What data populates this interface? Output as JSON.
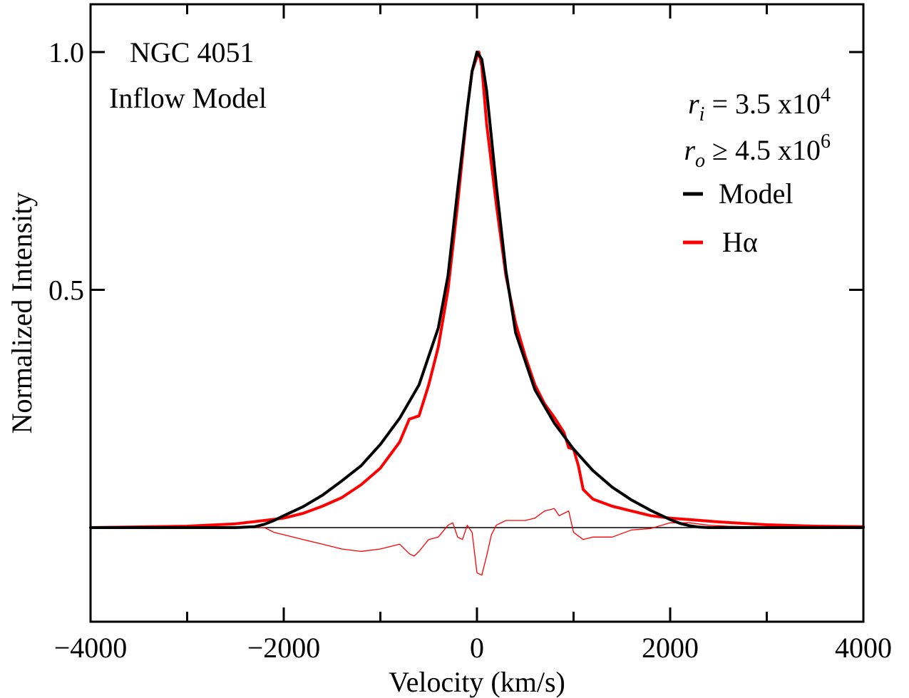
{
  "chart_data": {
    "type": "line",
    "xlabel": "Velocity (km/s)",
    "ylabel": "Normalized Intensity",
    "xlim": [
      -4000,
      4000
    ],
    "ylim": [
      -0.2,
      1.1
    ],
    "x_ticks": [
      -4000,
      -2000,
      0,
      2000,
      4000
    ],
    "x_tick_labels": [
      "−4000",
      "−2000",
      "0",
      "2000",
      "4000"
    ],
    "y_ticks": [
      0.5,
      1.0
    ],
    "y_tick_labels": [
      "0.5",
      "1.0"
    ],
    "annotations": {
      "object": "NGC 4051",
      "model_name": "Inflow Model",
      "ri": {
        "sym": "r",
        "sub": "i",
        "rel": " = 3.5 x10",
        "exp": "4"
      },
      "ro": {
        "sym": "r",
        "sub": "o",
        "rel": " ≥ 4.5 x10",
        "exp": "6"
      }
    },
    "legend_position": "top-right",
    "colors": {
      "model": "#000000",
      "halpha": "#ff0000",
      "residual": "#ff0000",
      "zero_line": "#000000"
    },
    "series": [
      {
        "name": "Model",
        "style": "thick",
        "x": [
          -4000,
          -3000,
          -2500,
          -2300,
          -2200,
          -2100,
          -2000,
          -1800,
          -1600,
          -1400,
          -1200,
          -1000,
          -800,
          -600,
          -400,
          -300,
          -200,
          -100,
          -50,
          0,
          50,
          100,
          200,
          300,
          400,
          600,
          800,
          1000,
          1200,
          1400,
          1600,
          1800,
          2000,
          2100,
          2200,
          2300,
          2400,
          2600,
          3000,
          4000
        ],
        "y": [
          0.0,
          0.0,
          0.0,
          0.002,
          0.007,
          0.015,
          0.025,
          0.044,
          0.068,
          0.098,
          0.13,
          0.175,
          0.23,
          0.3,
          0.42,
          0.53,
          0.71,
          0.88,
          0.96,
          1.0,
          0.985,
          0.92,
          0.72,
          0.54,
          0.41,
          0.29,
          0.22,
          0.165,
          0.12,
          0.085,
          0.058,
          0.036,
          0.017,
          0.009,
          0.004,
          0.001,
          0.0,
          0.0,
          0.0,
          0.0
        ]
      },
      {
        "name": "Hα",
        "style": "thick",
        "x": [
          -4000,
          -3000,
          -2500,
          -2200,
          -2000,
          -1800,
          -1600,
          -1400,
          -1200,
          -1000,
          -800,
          -700,
          -600,
          -500,
          -400,
          -300,
          -200,
          -100,
          -50,
          0,
          20,
          50,
          100,
          200,
          300,
          400,
          500,
          600,
          700,
          800,
          900,
          950,
          1000,
          1050,
          1100,
          1200,
          1400,
          1600,
          1800,
          2000,
          2200,
          2500,
          3000,
          3500,
          4000
        ],
        "y": [
          0.0,
          0.003,
          0.008,
          0.015,
          0.02,
          0.03,
          0.045,
          0.063,
          0.09,
          0.125,
          0.18,
          0.228,
          0.235,
          0.3,
          0.38,
          0.5,
          0.68,
          0.88,
          0.96,
          0.99,
          1.0,
          0.97,
          0.85,
          0.68,
          0.53,
          0.43,
          0.36,
          0.3,
          0.26,
          0.232,
          0.2,
          0.168,
          0.165,
          0.13,
          0.08,
          0.06,
          0.045,
          0.035,
          0.025,
          0.02,
          0.017,
          0.012,
          0.006,
          0.003,
          0.002
        ]
      },
      {
        "name": "",
        "style": "thin",
        "x": [
          -4000,
          -2200,
          -2100,
          -2000,
          -1800,
          -1600,
          -1400,
          -1200,
          -1000,
          -800,
          -700,
          -650,
          -600,
          -500,
          -400,
          -300,
          -250,
          -200,
          -150,
          -100,
          -50,
          0,
          50,
          100,
          150,
          200,
          300,
          400,
          500,
          600,
          700,
          800,
          850,
          900,
          950,
          1000,
          1100,
          1200,
          1400,
          1600,
          1800,
          2000,
          2200,
          2400,
          2600,
          3000,
          4000
        ],
        "y": [
          0.0,
          0.0,
          -0.01,
          -0.015,
          -0.025,
          -0.035,
          -0.045,
          -0.05,
          -0.045,
          -0.035,
          -0.055,
          -0.06,
          -0.05,
          -0.025,
          -0.02,
          0.005,
          0.01,
          -0.02,
          -0.025,
          0.005,
          -0.01,
          -0.095,
          -0.1,
          -0.06,
          -0.015,
          0.005,
          0.015,
          0.015,
          0.015,
          0.02,
          0.035,
          0.04,
          0.025,
          0.03,
          0.035,
          -0.01,
          -0.025,
          -0.02,
          -0.02,
          -0.005,
          -0.002,
          0.01,
          0.01,
          0.005,
          0.003,
          0.001,
          0.0
        ]
      }
    ]
  }
}
